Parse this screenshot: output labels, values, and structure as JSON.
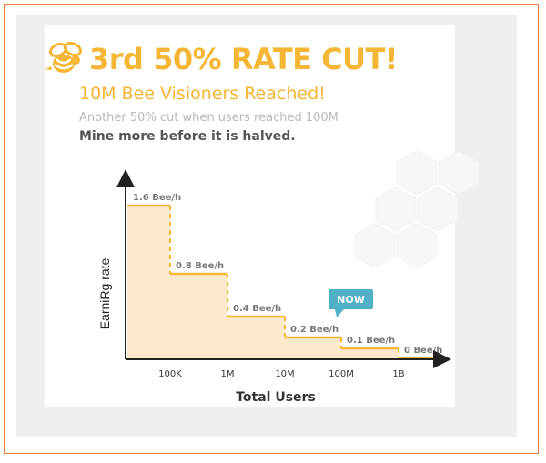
{
  "headline": "3rd 50% RATE CUT!",
  "subheadline": "10M Bee Visioners Reached!",
  "note": "Another 50% cut when users reached 100M",
  "emphasis": "Mine more before it is halved.",
  "colors": {
    "accent": "#f5b535",
    "fill": "#fde9cc",
    "badge": "#4fb0c6",
    "axis": "#222222",
    "frame": "#e8803a"
  },
  "icons": {
    "logo": "bee-icon",
    "decoration": "honeycomb-hexagons"
  },
  "chart_data": {
    "type": "step-area",
    "xlabel": "Total Users",
    "ylabel": "EarniRg rate",
    "categories": [
      "100K",
      "1M",
      "10M",
      "100M",
      "1B"
    ],
    "values": [
      1.6,
      0.8,
      0.4,
      0.2,
      0.1,
      0
    ],
    "labels": [
      "1.6 Bee/h",
      "0.8 Bee/h",
      "0.4 Bee/h",
      "0.2 Bee/h",
      "0.1 Bee/h",
      "0 Bee/h"
    ],
    "ylim": [
      0,
      1.6
    ],
    "grid": false,
    "annotation": {
      "text": "NOW",
      "segment": 3
    }
  }
}
